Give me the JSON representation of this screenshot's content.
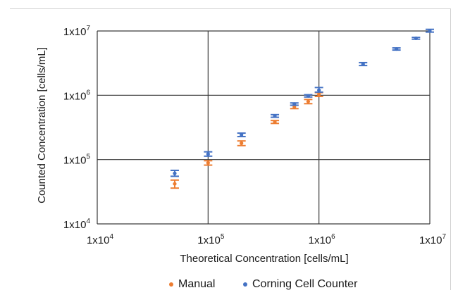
{
  "chart_data": {
    "type": "scatter",
    "xlabel": "Theoretical Concentration  [cells/mL]",
    "ylabel": "Counted Concentration  [cells/mL]",
    "x_scale": "log",
    "y_scale": "log",
    "xlim": [
      10000,
      10000000
    ],
    "ylim": [
      10000,
      10000000
    ],
    "grid": true,
    "legend_position": "bottom",
    "x_ticks": [
      {
        "value": 10000,
        "mantissa": "1x10",
        "exp": "4"
      },
      {
        "value": 100000,
        "mantissa": "1x10",
        "exp": "5"
      },
      {
        "value": 1000000,
        "mantissa": "1x10",
        "exp": "6"
      },
      {
        "value": 10000000,
        "mantissa": "1x10",
        "exp": "7"
      }
    ],
    "y_ticks": [
      {
        "value": 10000,
        "mantissa": "1x10",
        "exp": "4"
      },
      {
        "value": 100000,
        "mantissa": "1x10",
        "exp": "5"
      },
      {
        "value": 1000000,
        "mantissa": "1x10",
        "exp": "6"
      },
      {
        "value": 10000000,
        "mantissa": "1x10",
        "exp": "7"
      }
    ],
    "series": [
      {
        "name": "Manual",
        "color": "#ed7d31",
        "x": [
          50000,
          100000,
          200000,
          400000,
          600000,
          800000,
          1000000
        ],
        "y": [
          42000,
          89000,
          180000,
          385000,
          660000,
          800000,
          1030000
        ],
        "err_low": [
          36000,
          82000,
          165000,
          365000,
          620000,
          740000,
          960000
        ],
        "err_high": [
          48000,
          96000,
          195000,
          405000,
          700000,
          860000,
          1100000
        ]
      },
      {
        "name": "Corning Cell Counter",
        "color": "#4472c4",
        "x": [
          50000,
          100000,
          200000,
          400000,
          600000,
          800000,
          1000000,
          2500000,
          5000000,
          7500000,
          10000000
        ],
        "y": [
          61000,
          122000,
          243000,
          477000,
          730000,
          980000,
          1200000,
          3050000,
          5250000,
          7700000,
          10000000
        ],
        "err_low": [
          55000,
          113000,
          228000,
          455000,
          700000,
          940000,
          1120000,
          2900000,
          5050000,
          7450000,
          9600000
        ],
        "err_high": [
          68000,
          132000,
          258000,
          500000,
          760000,
          1020000,
          1320000,
          3220000,
          5450000,
          7950000,
          10600000
        ]
      }
    ]
  }
}
